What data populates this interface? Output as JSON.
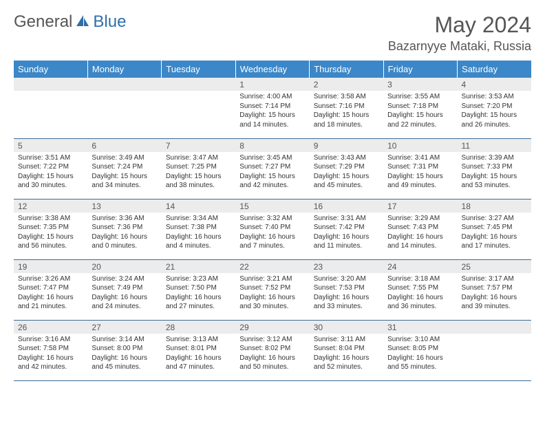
{
  "brand": {
    "part1": "General",
    "part2": "Blue"
  },
  "title": "May 2024",
  "location": "Bazarnyye Mataki, Russia",
  "colors": {
    "header_bg": "#3b87c8",
    "header_fg": "#ffffff",
    "daynum_bg": "#ececec",
    "text": "#333333",
    "rule": "#3b6a94",
    "brand_gray": "#555555",
    "brand_blue": "#2f6fa8"
  },
  "dayNames": [
    "Sunday",
    "Monday",
    "Tuesday",
    "Wednesday",
    "Thursday",
    "Friday",
    "Saturday"
  ],
  "weeks": [
    [
      null,
      null,
      null,
      {
        "n": "1",
        "sr": "4:00 AM",
        "ss": "7:14 PM",
        "dl": "15 hours and 14 minutes."
      },
      {
        "n": "2",
        "sr": "3:58 AM",
        "ss": "7:16 PM",
        "dl": "15 hours and 18 minutes."
      },
      {
        "n": "3",
        "sr": "3:55 AM",
        "ss": "7:18 PM",
        "dl": "15 hours and 22 minutes."
      },
      {
        "n": "4",
        "sr": "3:53 AM",
        "ss": "7:20 PM",
        "dl": "15 hours and 26 minutes."
      }
    ],
    [
      {
        "n": "5",
        "sr": "3:51 AM",
        "ss": "7:22 PM",
        "dl": "15 hours and 30 minutes."
      },
      {
        "n": "6",
        "sr": "3:49 AM",
        "ss": "7:24 PM",
        "dl": "15 hours and 34 minutes."
      },
      {
        "n": "7",
        "sr": "3:47 AM",
        "ss": "7:25 PM",
        "dl": "15 hours and 38 minutes."
      },
      {
        "n": "8",
        "sr": "3:45 AM",
        "ss": "7:27 PM",
        "dl": "15 hours and 42 minutes."
      },
      {
        "n": "9",
        "sr": "3:43 AM",
        "ss": "7:29 PM",
        "dl": "15 hours and 45 minutes."
      },
      {
        "n": "10",
        "sr": "3:41 AM",
        "ss": "7:31 PM",
        "dl": "15 hours and 49 minutes."
      },
      {
        "n": "11",
        "sr": "3:39 AM",
        "ss": "7:33 PM",
        "dl": "15 hours and 53 minutes."
      }
    ],
    [
      {
        "n": "12",
        "sr": "3:38 AM",
        "ss": "7:35 PM",
        "dl": "15 hours and 56 minutes."
      },
      {
        "n": "13",
        "sr": "3:36 AM",
        "ss": "7:36 PM",
        "dl": "16 hours and 0 minutes."
      },
      {
        "n": "14",
        "sr": "3:34 AM",
        "ss": "7:38 PM",
        "dl": "16 hours and 4 minutes."
      },
      {
        "n": "15",
        "sr": "3:32 AM",
        "ss": "7:40 PM",
        "dl": "16 hours and 7 minutes."
      },
      {
        "n": "16",
        "sr": "3:31 AM",
        "ss": "7:42 PM",
        "dl": "16 hours and 11 minutes."
      },
      {
        "n": "17",
        "sr": "3:29 AM",
        "ss": "7:43 PM",
        "dl": "16 hours and 14 minutes."
      },
      {
        "n": "18",
        "sr": "3:27 AM",
        "ss": "7:45 PM",
        "dl": "16 hours and 17 minutes."
      }
    ],
    [
      {
        "n": "19",
        "sr": "3:26 AM",
        "ss": "7:47 PM",
        "dl": "16 hours and 21 minutes."
      },
      {
        "n": "20",
        "sr": "3:24 AM",
        "ss": "7:49 PM",
        "dl": "16 hours and 24 minutes."
      },
      {
        "n": "21",
        "sr": "3:23 AM",
        "ss": "7:50 PM",
        "dl": "16 hours and 27 minutes."
      },
      {
        "n": "22",
        "sr": "3:21 AM",
        "ss": "7:52 PM",
        "dl": "16 hours and 30 minutes."
      },
      {
        "n": "23",
        "sr": "3:20 AM",
        "ss": "7:53 PM",
        "dl": "16 hours and 33 minutes."
      },
      {
        "n": "24",
        "sr": "3:18 AM",
        "ss": "7:55 PM",
        "dl": "16 hours and 36 minutes."
      },
      {
        "n": "25",
        "sr": "3:17 AM",
        "ss": "7:57 PM",
        "dl": "16 hours and 39 minutes."
      }
    ],
    [
      {
        "n": "26",
        "sr": "3:16 AM",
        "ss": "7:58 PM",
        "dl": "16 hours and 42 minutes."
      },
      {
        "n": "27",
        "sr": "3:14 AM",
        "ss": "8:00 PM",
        "dl": "16 hours and 45 minutes."
      },
      {
        "n": "28",
        "sr": "3:13 AM",
        "ss": "8:01 PM",
        "dl": "16 hours and 47 minutes."
      },
      {
        "n": "29",
        "sr": "3:12 AM",
        "ss": "8:02 PM",
        "dl": "16 hours and 50 minutes."
      },
      {
        "n": "30",
        "sr": "3:11 AM",
        "ss": "8:04 PM",
        "dl": "16 hours and 52 minutes."
      },
      {
        "n": "31",
        "sr": "3:10 AM",
        "ss": "8:05 PM",
        "dl": "16 hours and 55 minutes."
      },
      null
    ]
  ],
  "labels": {
    "sunrise": "Sunrise:",
    "sunset": "Sunset:",
    "daylight": "Daylight:"
  }
}
